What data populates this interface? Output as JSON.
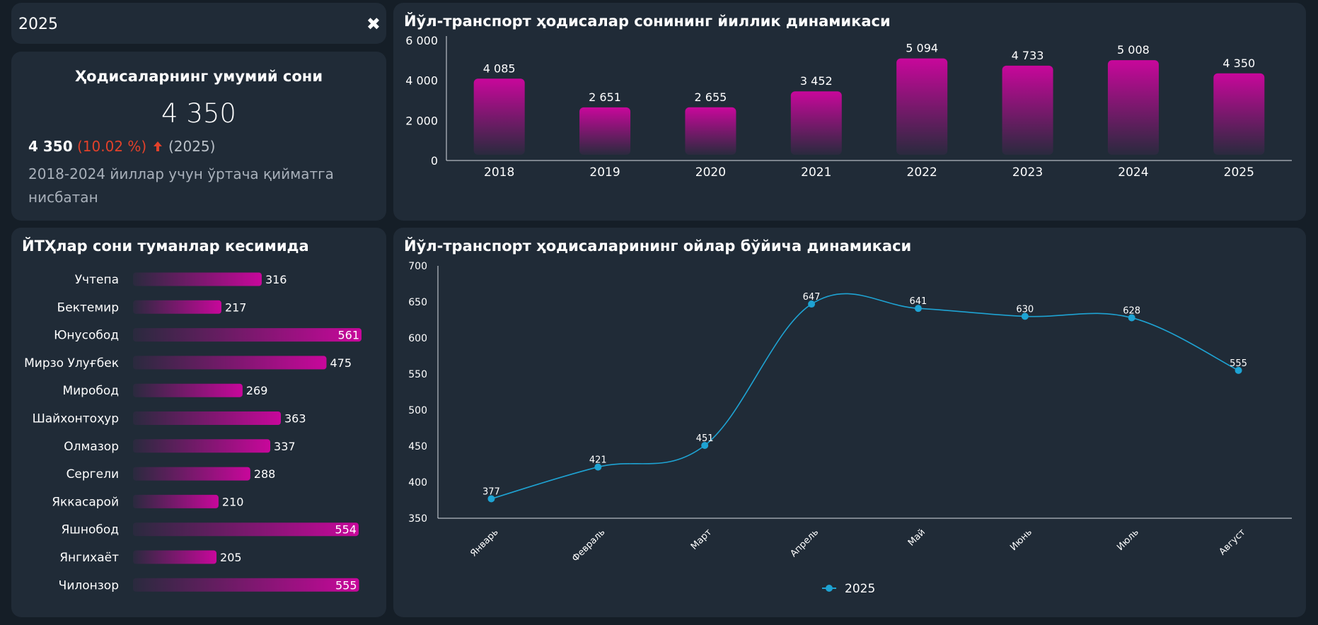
{
  "filter": {
    "value": "2025",
    "clear_icon": "close-icon"
  },
  "kpi": {
    "title": "Ҳодисаларнинг умумий сони",
    "value": "4 350",
    "current": "4 350",
    "change_pct": "(10.02 %)",
    "trend_icon": "arrow-up-icon",
    "year": "(2025)",
    "description": "2018-2024 йиллар учун ўртача қийматга нисбатан",
    "colors": {
      "negative": "#e2412a"
    }
  },
  "yearly_chart": {
    "title": "Йўл-транспорт ҳодисалар сонининг йиллик динамикаси"
  },
  "district_chart": {
    "title": "ЙТҲлар сони туманлар кесимида"
  },
  "monthly_chart": {
    "title": "Йўл-транспорт ҳодисаларининг ойлар бўйича динамикаси"
  },
  "chart_data": [
    {
      "type": "bar",
      "title": "Йўл-транспорт ҳодисалар сонининг йиллик динамикаси",
      "categories": [
        "2018",
        "2019",
        "2020",
        "2021",
        "2022",
        "2023",
        "2024",
        "2025"
      ],
      "values": [
        4085,
        2651,
        2655,
        3452,
        5094,
        4733,
        5008,
        4350
      ],
      "value_labels": [
        "4 085",
        "2 651",
        "2 655",
        "3 452",
        "5 094",
        "4 733",
        "5 008",
        "4 350"
      ],
      "y_ticks": [
        "0",
        "2 000",
        "4 000",
        "6 000"
      ],
      "y_tick_values": [
        0,
        2000,
        4000,
        6000
      ],
      "ylim": [
        0,
        6000
      ],
      "grid": false,
      "bar_color_top": "#c8079b",
      "bar_color_bottom": "#2a2a3e"
    },
    {
      "type": "bar",
      "orientation": "horizontal",
      "title": "ЙТҲлар сони туманлар кесимида",
      "categories": [
        "Учтепа",
        "Бектемир",
        "Юнусобод",
        "Мирзо Улуғбек",
        "Миробод",
        "Шайхонтоҳур",
        "Олмазор",
        "Сергели",
        "Яккасарой",
        "Яшнобод",
        "Янгихаёт",
        "Чилонзор"
      ],
      "values": [
        316,
        217,
        561,
        475,
        269,
        363,
        337,
        288,
        210,
        554,
        205,
        555
      ],
      "xlim": [
        0,
        561
      ],
      "bar_color_start": "#2a2a3e",
      "bar_color_end": "#c8079b"
    },
    {
      "type": "line",
      "title": "Йўл-транспорт ҳодисаларининг ойлар бўйича динамикаси",
      "categories": [
        "Январь",
        "Февраль",
        "Март",
        "Апрель",
        "Май",
        "Июнь",
        "Июль",
        "Август"
      ],
      "series": [
        {
          "name": "2025",
          "values": [
            377,
            421,
            451,
            647,
            641,
            630,
            628,
            555
          ],
          "color": "#1ea3d3"
        }
      ],
      "y_ticks": [
        "350",
        "400",
        "450",
        "500",
        "550",
        "600",
        "650",
        "700"
      ],
      "y_tick_values": [
        350,
        400,
        450,
        500,
        550,
        600,
        650,
        700
      ],
      "ylim": [
        350,
        700
      ],
      "legend": "bottom-center",
      "grid": false
    }
  ]
}
